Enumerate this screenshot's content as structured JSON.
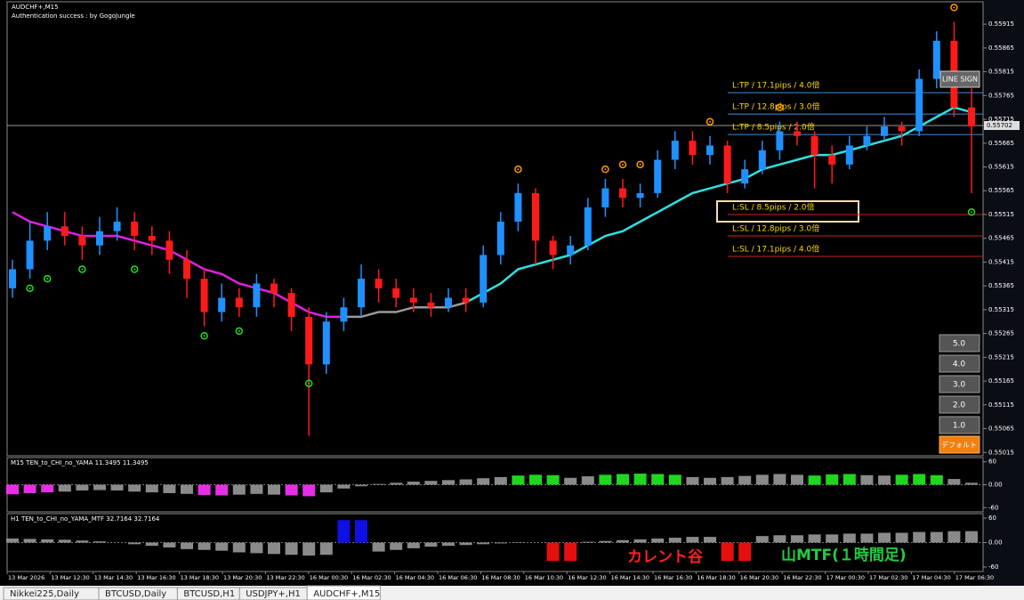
{
  "header": {
    "symbol": "AUDCHF+,M15",
    "status": "Authentication success : by GogoJungle"
  },
  "chart": {
    "ylim": [
      0.55008,
      0.55962
    ],
    "yticks": [
      0.55915,
      0.55865,
      0.55815,
      0.55765,
      0.55715,
      0.55665,
      0.55615,
      0.55565,
      0.55515,
      0.55465,
      0.55415,
      0.55365,
      0.55315,
      0.55265,
      0.55215,
      0.55165,
      0.55115,
      0.55065,
      0.55015
    ],
    "current_price": 0.55702,
    "up_color": "#1e90ff",
    "down_color": "#ff1a1a",
    "candles": {
      "open": [
        0.5536,
        0.554,
        0.5546,
        0.5549,
        0.5547,
        0.5545,
        0.5548,
        0.555,
        0.5547,
        0.5546,
        0.5542,
        0.5538,
        0.5531,
        0.5534,
        0.5532,
        0.5537,
        0.5535,
        0.553,
        0.552,
        0.5529,
        0.5532,
        0.5538,
        0.5536,
        0.5534,
        0.5533,
        0.5532,
        0.5534,
        0.5533,
        0.5543,
        0.555,
        0.5556,
        0.5546,
        0.5543,
        0.5545,
        0.5553,
        0.5557,
        0.5555,
        0.5556,
        0.5563,
        0.5567,
        0.5564,
        0.5566,
        0.5558,
        0.5561,
        0.5565,
        0.5569,
        0.5568,
        0.5564,
        0.5562,
        0.5566,
        0.5568,
        0.557,
        0.5569,
        0.558,
        0.5588,
        0.5574
      ],
      "high": [
        0.5542,
        0.555,
        0.5552,
        0.5552,
        0.5549,
        0.5551,
        0.5553,
        0.5552,
        0.5549,
        0.5548,
        0.5544,
        0.554,
        0.5537,
        0.5536,
        0.5539,
        0.5538,
        0.5536,
        0.5532,
        0.5531,
        0.5534,
        0.5541,
        0.554,
        0.5538,
        0.5536,
        0.5535,
        0.5536,
        0.5536,
        0.5545,
        0.5552,
        0.5558,
        0.5557,
        0.5547,
        0.5547,
        0.5555,
        0.5559,
        0.5559,
        0.5558,
        0.5565,
        0.5569,
        0.5569,
        0.5568,
        0.5567,
        0.5563,
        0.5567,
        0.5571,
        0.5571,
        0.5569,
        0.5566,
        0.5568,
        0.557,
        0.5572,
        0.5571,
        0.5582,
        0.559,
        0.5592,
        0.5578
      ],
      "low": [
        0.5534,
        0.5538,
        0.5544,
        0.5545,
        0.5542,
        0.5543,
        0.5546,
        0.5544,
        0.5543,
        0.5539,
        0.5534,
        0.5528,
        0.5529,
        0.553,
        0.553,
        0.5532,
        0.5527,
        0.5505,
        0.5518,
        0.5527,
        0.553,
        0.5533,
        0.5532,
        0.5531,
        0.553,
        0.5531,
        0.5531,
        0.5532,
        0.5541,
        0.5548,
        0.5541,
        0.554,
        0.5541,
        0.5544,
        0.5551,
        0.5553,
        0.5553,
        0.5555,
        0.5561,
        0.5562,
        0.5562,
        0.5556,
        0.5557,
        0.556,
        0.5563,
        0.5566,
        0.5557,
        0.5558,
        0.5561,
        0.5565,
        0.5567,
        0.5566,
        0.5568,
        0.5578,
        0.5572,
        0.5556
      ],
      "close": [
        0.554,
        0.5546,
        0.5549,
        0.5547,
        0.5545,
        0.5548,
        0.555,
        0.5547,
        0.5546,
        0.5542,
        0.5538,
        0.5531,
        0.5534,
        0.5532,
        0.5537,
        0.5535,
        0.553,
        0.552,
        0.5529,
        0.5532,
        0.5538,
        0.5536,
        0.5534,
        0.5533,
        0.5532,
        0.5534,
        0.5533,
        0.5543,
        0.555,
        0.5556,
        0.5546,
        0.5543,
        0.5545,
        0.5553,
        0.5557,
        0.5555,
        0.5556,
        0.5563,
        0.5567,
        0.5564,
        0.5566,
        0.5558,
        0.5561,
        0.5565,
        0.5569,
        0.5568,
        0.5564,
        0.5562,
        0.5566,
        0.5568,
        0.557,
        0.5569,
        0.558,
        0.5588,
        0.5574,
        0.557
      ]
    },
    "ma": [
      {
        "color": "#e020e0",
        "values": [
          0.5552,
          0.555,
          0.5549,
          0.5548,
          0.5547,
          0.5547,
          0.5547,
          0.5546,
          0.5545,
          0.5544,
          0.5542,
          0.554,
          0.5539,
          0.5537,
          0.5536,
          0.5535,
          0.5533,
          0.5531,
          0.553,
          0.553,
          null,
          null,
          null,
          null,
          null,
          null,
          null,
          null,
          null,
          null,
          null,
          null,
          null,
          null,
          null,
          null,
          null,
          null,
          null,
          null,
          null,
          null,
          null,
          null,
          null,
          null,
          null,
          null,
          null,
          null,
          null,
          null,
          null,
          null,
          null,
          null
        ]
      },
      {
        "color": "#9a9a9a",
        "values": [
          null,
          null,
          null,
          null,
          null,
          null,
          null,
          null,
          null,
          null,
          null,
          null,
          null,
          null,
          null,
          null,
          null,
          null,
          null,
          0.553,
          0.553,
          0.5531,
          0.5531,
          0.5532,
          0.5532,
          0.5532,
          0.5533,
          null,
          null,
          null,
          null,
          null,
          null,
          null,
          null,
          null,
          null,
          null,
          null,
          null,
          null,
          null,
          null,
          null,
          null,
          null,
          null,
          null,
          null,
          null,
          null,
          null,
          null,
          null,
          null,
          null
        ]
      },
      {
        "color": "#30e0e0",
        "values": [
          null,
          null,
          null,
          null,
          null,
          null,
          null,
          null,
          null,
          null,
          null,
          null,
          null,
          null,
          null,
          null,
          null,
          null,
          null,
          null,
          null,
          null,
          null,
          null,
          null,
          null,
          0.5533,
          0.5535,
          0.5537,
          0.554,
          0.5541,
          0.5542,
          0.5543,
          0.5545,
          0.5547,
          0.5548,
          0.555,
          0.5552,
          0.5554,
          0.5556,
          0.5557,
          0.5558,
          0.5559,
          0.5561,
          0.5562,
          0.5563,
          0.5564,
          0.5564,
          0.5565,
          0.5566,
          0.5567,
          0.5568,
          0.557,
          0.5572,
          0.5574,
          0.5573
        ]
      }
    ],
    "buy_marks": {
      "color": "#22dd22",
      "values": [
        null,
        0.5536,
        0.5538,
        null,
        0.554,
        null,
        null,
        0.554,
        null,
        null,
        null,
        0.5526,
        null,
        0.5527,
        null,
        null,
        null,
        0.5516,
        null,
        null,
        null,
        null,
        null,
        null,
        null,
        null,
        null,
        null,
        null,
        null,
        null,
        null,
        null,
        null,
        null,
        null,
        null,
        null,
        null,
        null,
        null,
        null,
        null,
        null,
        null,
        null,
        null,
        null,
        null,
        null,
        null,
        null,
        null,
        null,
        null,
        0.5552
      ]
    },
    "sell_marks": {
      "color": "#ff9900",
      "values": [
        null,
        null,
        null,
        null,
        null,
        null,
        null,
        null,
        null,
        null,
        null,
        null,
        null,
        null,
        null,
        null,
        null,
        null,
        null,
        null,
        null,
        null,
        null,
        null,
        null,
        null,
        null,
        null,
        null,
        0.5561,
        null,
        null,
        null,
        null,
        0.5561,
        0.5562,
        0.5562,
        null,
        null,
        null,
        0.5571,
        null,
        null,
        null,
        0.5574,
        null,
        null,
        null,
        null,
        null,
        null,
        null,
        null,
        null,
        0.5595,
        null
      ]
    },
    "levels": [
      {
        "label": "L:TP / 17.1pips / 4.0倍",
        "price": 0.55771,
        "color": "#3a8fe0"
      },
      {
        "label": "L:TP / 12.8pips / 3.0倍",
        "price": 0.55726,
        "color": "#3a8fe0"
      },
      {
        "label": "L:TP / 8.5pips / 2.0倍",
        "price": 0.55683,
        "color": "#3a8fe0"
      },
      {
        "label": "L:SL / 8.5pips / 2.0倍",
        "price": 0.55515,
        "color": "#d02020"
      },
      {
        "label": "L:SL / 12.8pips / 3.0倍",
        "price": 0.5547,
        "color": "#d02020"
      },
      {
        "label": "L:SL / 17.1pips / 4.0倍",
        "price": 0.55427,
        "color": "#d02020"
      }
    ],
    "time_labels": [
      "13 Mar 2026",
      "13 Mar 12:30",
      "13 Mar 14:30",
      "13 Mar 16:30",
      "13 Mar 18:30",
      "13 Mar 20:30",
      "13 Mar 22:30",
      "16 Mar 00:30",
      "16 Mar 02:30",
      "16 Mar 04:30",
      "16 Mar 06:30",
      "16 Mar 08:30",
      "16 Mar 10:30",
      "16 Mar 12:30",
      "16 Mar 14:30",
      "16 Mar 16:30",
      "16 Mar 18:30",
      "16 Mar 20:30",
      "16 Mar 22:30",
      "17 Mar 00:30",
      "17 Mar 02:30",
      "17 Mar 04:30",
      "17 Mar 06:30"
    ]
  },
  "indicators": [
    {
      "title": "M15  TEN_to_CHI_no_YAMA 11.3495 11.3495",
      "ylim": [
        -71,
        71
      ],
      "yticks": [
        60,
        {
          "value": 0,
          "label": "0.00"
        },
        -60
      ],
      "values": [
        -25,
        -22,
        -20,
        -18,
        -15,
        -14,
        -15,
        -18,
        -20,
        -22,
        -24,
        -27,
        -28,
        -26,
        -24,
        -26,
        -28,
        -30,
        -20,
        -10,
        -4,
        2,
        5,
        8,
        10,
        12,
        14,
        17,
        20,
        24,
        26,
        25,
        18,
        22,
        26,
        28,
        29,
        28,
        26,
        20,
        18,
        20,
        23,
        26,
        28,
        26,
        24,
        27,
        28,
        25,
        24,
        26,
        28,
        25,
        15,
        5
      ],
      "colors": [
        "#f3f",
        "#f3f",
        "#f3f",
        "#999",
        "#999",
        "#999",
        "#999",
        "#999",
        "#999",
        "#999",
        "#999",
        "#f3f",
        "#f3f",
        "#999",
        "#999",
        "#999",
        "#f3f",
        "#f3f",
        "#999",
        "#999",
        "#999",
        "#999",
        "#999",
        "#999",
        "#999",
        "#999",
        "#999",
        "#999",
        "#999",
        "#2e2",
        "#2e2",
        "#2e2",
        "#999",
        "#999",
        "#2e2",
        "#2e2",
        "#2e2",
        "#2e2",
        "#2e2",
        "#999",
        "#999",
        "#999",
        "#999",
        "#999",
        "#999",
        "#999",
        "#2e2",
        "#2e2",
        "#2e2",
        "#999",
        "#999",
        "#2e2",
        "#2e2",
        "#2e2",
        "#999",
        "#999"
      ]
    },
    {
      "title": "H1  TEN_to_CHI_no_YAMA_MTF 32.7164 32.7164",
      "ylim": [
        -71,
        71
      ],
      "yticks": [
        60,
        {
          "value": 0,
          "label": "0.00"
        },
        -60
      ],
      "values": [
        10,
        9,
        8,
        7,
        5,
        3,
        0,
        -4,
        -8,
        -12,
        -16,
        -18,
        -20,
        -24,
        -26,
        -28,
        -30,
        -32,
        -30,
        55,
        55,
        -22,
        -18,
        -14,
        -10,
        -8,
        -6,
        -4,
        -2,
        -1,
        0,
        -45,
        -45,
        2,
        4,
        6,
        8,
        10,
        12,
        14,
        14,
        -45,
        -45,
        16,
        18,
        18,
        20,
        20,
        22,
        22,
        24,
        24,
        26,
        26,
        28,
        28
      ],
      "colors": [
        "#999",
        "#999",
        "#999",
        "#999",
        "#999",
        "#999",
        "#999",
        "#999",
        "#999",
        "#999",
        "#999",
        "#999",
        "#999",
        "#999",
        "#999",
        "#999",
        "#999",
        "#999",
        "#999",
        "#11f",
        "#11f",
        "#999",
        "#999",
        "#999",
        "#999",
        "#999",
        "#999",
        "#999",
        "#999",
        "#999",
        "#999",
        "#f11",
        "#f11",
        "#999",
        "#999",
        "#999",
        "#999",
        "#999",
        "#999",
        "#999",
        "#999",
        "#f11",
        "#f11",
        "#999",
        "#999",
        "#999",
        "#999",
        "#999",
        "#999",
        "#999",
        "#999",
        "#999",
        "#999",
        "#999",
        "#999",
        "#999"
      ]
    }
  ],
  "annotations": [
    {
      "text": "カレント谷",
      "color": "#ff2020"
    },
    {
      "text": "山MTF(１時間足)",
      "color": "#22cc44"
    }
  ],
  "buttons": {
    "line_sign": "LINE SIGN",
    "multipliers": [
      "5.0",
      "4.0",
      "3.0",
      "2.0",
      "1.0"
    ],
    "default": "デフォルト"
  },
  "tabs": [
    "Nikkei225,Daily",
    "BTCUSD,Daily",
    "BTCUSD,H1",
    "USDJPY+,H1",
    "AUDCHF+,M15"
  ],
  "active_tab": 4
}
